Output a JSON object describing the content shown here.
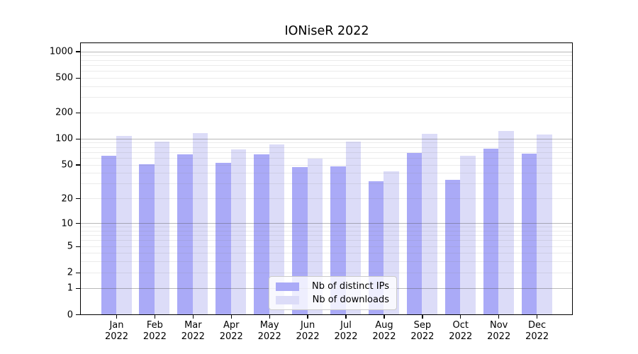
{
  "title": "IONiseR 2022",
  "chart_data": {
    "type": "bar",
    "title": "IONiseR 2022",
    "categories": [
      "Jan",
      "Feb",
      "Mar",
      "Apr",
      "May",
      "Jun",
      "Jul",
      "Aug",
      "Sep",
      "Oct",
      "Nov",
      "Dec"
    ],
    "year_label": "2022",
    "series": [
      {
        "name": "Nb of distinct IPs",
        "color": "#aaaaf7",
        "values": [
          64,
          51,
          66,
          53,
          66,
          47,
          48,
          32,
          68,
          33,
          76,
          67
        ]
      },
      {
        "name": "Nb of downloads",
        "color": "#dcdcf8",
        "values": [
          107,
          92,
          115,
          75,
          86,
          59,
          93,
          42,
          114,
          63,
          122,
          112
        ]
      }
    ],
    "yticks": [
      0,
      1,
      2,
      5,
      10,
      20,
      50,
      100,
      200,
      500,
      1000
    ],
    "ylim": [
      0,
      1240
    ],
    "yscale": "log1p",
    "grid": "horizontal",
    "legend_position": "lower center"
  }
}
